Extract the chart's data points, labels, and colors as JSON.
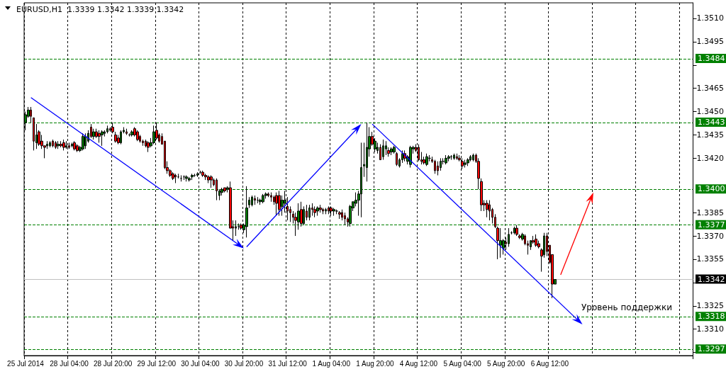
{
  "chart_data": {
    "type": "candlestick",
    "title": "EURUSD,H1  1.3339 1.3342 1.3339 1.3342",
    "categories": [
      "25 Jul 2014",
      null,
      null,
      null,
      null,
      null,
      null,
      null,
      null,
      null,
      null,
      null,
      null,
      null,
      null,
      null,
      "28 Jul 04:00",
      null,
      null,
      null,
      null,
      null,
      null,
      null,
      null,
      null,
      null,
      null,
      null,
      null,
      null,
      null,
      "28 Jul 20:00",
      null,
      null,
      null,
      null,
      null,
      null,
      null,
      null,
      null,
      null,
      null,
      null,
      null,
      null,
      null,
      "29 Jul 12:00",
      null,
      null,
      null,
      null,
      null,
      null,
      null,
      null,
      null,
      null,
      null,
      null,
      null,
      null,
      null,
      "30 Jul 04:00",
      null,
      null,
      null,
      null,
      null,
      null,
      null,
      null,
      null,
      null,
      null,
      null,
      null,
      null,
      null,
      "30 Jul 20:00",
      null,
      null,
      null,
      null,
      null,
      null,
      null,
      null,
      null,
      null,
      null,
      null,
      null,
      null,
      null,
      "31 Jul 12:00",
      null,
      null,
      null,
      null,
      null,
      null,
      null,
      null,
      null,
      null,
      null,
      null,
      null,
      null,
      null,
      "1 Aug 04:00",
      null,
      null,
      null,
      null,
      null,
      null,
      null,
      null,
      null,
      null,
      null,
      null,
      null,
      null,
      null,
      "1 Aug 20:00",
      null,
      null,
      null,
      null,
      null,
      null,
      null,
      null,
      null,
      null,
      null,
      null,
      null,
      null,
      null,
      "4 Aug 12:00",
      null,
      null,
      null,
      null,
      null,
      null,
      null,
      null,
      null,
      null,
      null,
      null,
      null,
      null,
      null,
      "5 Aug 04:00",
      null,
      null,
      null,
      null,
      null,
      null,
      null,
      null,
      null,
      null,
      null,
      null,
      null,
      null,
      null,
      "5 Aug 20:00",
      null,
      null,
      null,
      null,
      null,
      null,
      null,
      null,
      null,
      null,
      null,
      null,
      null,
      null,
      null,
      "6 Aug 12:00",
      null,
      null,
      null,
      null,
      null,
      null,
      null,
      null,
      null,
      null,
      null,
      null,
      null,
      null,
      null,
      null,
      null,
      null,
      null,
      null,
      null,
      null,
      null,
      null,
      null,
      null,
      null,
      null,
      null,
      null,
      null,
      null,
      null,
      null,
      null,
      null,
      null,
      null,
      null,
      null,
      null,
      null,
      null,
      null,
      null,
      null,
      null,
      null,
      null,
      null,
      null,
      null
    ],
    "ohlc": [
      [
        1.3443,
        1.345,
        1.3438,
        1.3448
      ],
      [
        1.3447,
        1.3453,
        1.3446,
        1.3451
      ],
      [
        1.3451,
        1.3453,
        1.3443,
        1.3447
      ],
      [
        1.3446,
        1.3446,
        1.3425,
        1.3431
      ],
      [
        1.343,
        1.3442,
        1.3426,
        1.3435
      ],
      [
        1.3437,
        1.3438,
        1.3428,
        1.3429
      ],
      [
        1.3431,
        1.3435,
        1.3426,
        1.3428
      ],
      [
        1.3428,
        1.3428,
        1.342,
        1.3427
      ],
      [
        1.3428,
        1.3431,
        1.3426,
        1.3429
      ],
      [
        1.3428,
        1.3431,
        1.3427,
        1.343
      ],
      [
        1.3431,
        1.3432,
        1.3427,
        1.3428
      ],
      [
        1.343,
        1.3431,
        1.3426,
        1.3427
      ],
      [
        1.3428,
        1.3431,
        1.3426,
        1.3429
      ],
      [
        1.3429,
        1.3431,
        1.3427,
        1.3428
      ],
      [
        1.343,
        1.3432,
        1.3425,
        1.3427
      ],
      [
        1.3427,
        1.3431,
        1.3426,
        1.3428
      ],
      [
        1.3428,
        1.343,
        1.3426,
        1.3427
      ],
      [
        1.3428,
        1.343,
        1.3427,
        1.3429
      ],
      [
        1.343,
        1.3431,
        1.3425,
        1.3426
      ],
      [
        1.3428,
        1.3429,
        1.3424,
        1.3425
      ],
      [
        1.3425,
        1.3428,
        1.3424,
        1.3427
      ],
      [
        1.3426,
        1.3436,
        1.3425,
        1.3434
      ],
      [
        1.3428,
        1.3436,
        1.3426,
        1.3434
      ],
      [
        1.3431,
        1.3438,
        1.343,
        1.3436
      ],
      [
        1.344,
        1.3442,
        1.3433,
        1.3434
      ],
      [
        1.3434,
        1.3439,
        1.3432,
        1.3437
      ],
      [
        1.3437,
        1.3439,
        1.3433,
        1.3434
      ],
      [
        1.3436,
        1.3438,
        1.343,
        1.3434
      ],
      [
        1.3435,
        1.3438,
        1.3428,
        1.3437
      ],
      [
        1.3436,
        1.3438,
        1.3434,
        1.3437
      ],
      [
        1.3437,
        1.3441,
        1.3436,
        1.3439
      ],
      [
        1.3439,
        1.344,
        1.3437,
        1.3438
      ],
      [
        1.344,
        1.3443,
        1.3436,
        1.3437
      ],
      [
        1.3435,
        1.3437,
        1.343,
        1.3431
      ],
      [
        1.3433,
        1.3435,
        1.3429,
        1.343
      ],
      [
        1.343,
        1.3438,
        1.3429,
        1.3437
      ],
      [
        1.3437,
        1.344,
        1.3436,
        1.3438
      ],
      [
        1.3437,
        1.3439,
        1.3435,
        1.3436
      ],
      [
        1.3435,
        1.3436,
        1.3434,
        1.3435
      ],
      [
        1.3435,
        1.3438,
        1.3434,
        1.3437
      ],
      [
        1.3439,
        1.344,
        1.3434,
        1.3435
      ],
      [
        1.3437,
        1.3438,
        1.3431,
        1.3432
      ],
      [
        1.3434,
        1.3435,
        1.343,
        1.3431
      ],
      [
        1.3431,
        1.3432,
        1.3428,
        1.343
      ],
      [
        1.3431,
        1.3432,
        1.3427,
        1.3428
      ],
      [
        1.343,
        1.3431,
        1.3424,
        1.3427
      ],
      [
        1.3428,
        1.3433,
        1.3427,
        1.343
      ],
      [
        1.343,
        1.3441,
        1.3429,
        1.3437
      ],
      [
        1.3438,
        1.3443,
        1.3432,
        1.3433
      ],
      [
        1.3435,
        1.3436,
        1.343,
        1.3431
      ],
      [
        1.3434,
        1.3436,
        1.3429,
        1.3429
      ],
      [
        1.3431,
        1.3431,
        1.3413,
        1.3414
      ],
      [
        1.3414,
        1.3418,
        1.341,
        1.3412
      ],
      [
        1.3412,
        1.3413,
        1.3408,
        1.3409
      ],
      [
        1.341,
        1.3411,
        1.3406,
        1.3407
      ],
      [
        1.3409,
        1.341,
        1.3404,
        1.3408
      ],
      [
        1.3408,
        1.341,
        1.3407,
        1.3408
      ],
      [
        1.3407,
        1.3409,
        1.3405,
        1.3407
      ],
      [
        1.3408,
        1.3409,
        1.3406,
        1.3408
      ],
      [
        1.3407,
        1.3409,
        1.3405,
        1.3408
      ],
      [
        1.3406,
        1.3408,
        1.3405,
        1.3407
      ],
      [
        1.3408,
        1.341,
        1.3406,
        1.3409
      ],
      [
        1.3409,
        1.341,
        1.3408,
        1.3409
      ],
      [
        1.3409,
        1.3411,
        1.3408,
        1.341
      ],
      [
        1.3411,
        1.3412,
        1.341,
        1.3411
      ],
      [
        1.3411,
        1.3412,
        1.3408,
        1.3409
      ],
      [
        1.3409,
        1.341,
        1.3406,
        1.3408
      ],
      [
        1.3408,
        1.3409,
        1.3404,
        1.3406
      ],
      [
        1.3408,
        1.3409,
        1.3401,
        1.3406
      ],
      [
        1.3406,
        1.3407,
        1.3402,
        1.3403
      ],
      [
        1.3406,
        1.3407,
        1.3393,
        1.3399
      ],
      [
        1.3396,
        1.34,
        1.3393,
        1.3399
      ],
      [
        1.3398,
        1.3401,
        1.3396,
        1.34
      ],
      [
        1.3401,
        1.3401,
        1.3398,
        1.3399
      ],
      [
        1.34,
        1.3402,
        1.3398,
        1.3401
      ],
      [
        1.3401,
        1.3405,
        1.3375,
        1.3375
      ],
      [
        1.3376,
        1.338,
        1.3367,
        1.3375
      ],
      [
        1.3375,
        1.338,
        1.337,
        1.3376
      ],
      [
        1.3376,
        1.3378,
        1.3374,
        1.3376
      ],
      [
        1.3377,
        1.3378,
        1.3374,
        1.3375
      ],
      [
        1.3374,
        1.3378,
        1.3372,
        1.3377
      ],
      [
        1.3376,
        1.3402,
        1.3369,
        1.3388
      ],
      [
        1.339,
        1.3395,
        1.3388,
        1.3393
      ],
      [
        1.339,
        1.3396,
        1.3389,
        1.3395
      ],
      [
        1.3394,
        1.3396,
        1.339,
        1.3393
      ],
      [
        1.3393,
        1.3395,
        1.3391,
        1.3393
      ],
      [
        1.3392,
        1.3394,
        1.339,
        1.3393
      ],
      [
        1.3392,
        1.3397,
        1.3391,
        1.3396
      ],
      [
        1.3396,
        1.3398,
        1.3394,
        1.3397
      ],
      [
        1.3397,
        1.3398,
        1.3395,
        1.3396
      ],
      [
        1.3396,
        1.3398,
        1.3392,
        1.3395
      ],
      [
        1.3395,
        1.3396,
        1.339,
        1.3392
      ],
      [
        1.3396,
        1.3398,
        1.3383,
        1.3391
      ],
      [
        1.3396,
        1.3399,
        1.3383,
        1.3387
      ],
      [
        1.3389,
        1.3396,
        1.3383,
        1.3393
      ],
      [
        1.3391,
        1.3399,
        1.3385,
        1.3393
      ],
      [
        1.3389,
        1.3395,
        1.338,
        1.3386
      ],
      [
        1.3387,
        1.3389,
        1.3379,
        1.3385
      ],
      [
        1.3384,
        1.3386,
        1.3378,
        1.3382
      ],
      [
        1.3382,
        1.3385,
        1.337,
        1.338
      ],
      [
        1.3379,
        1.3391,
        1.3374,
        1.3386
      ],
      [
        1.3387,
        1.3392,
        1.3376,
        1.3378
      ],
      [
        1.3378,
        1.3389,
        1.3377,
        1.3387
      ],
      [
        1.3386,
        1.339,
        1.338,
        1.3382
      ],
      [
        1.3382,
        1.339,
        1.338,
        1.3388
      ],
      [
        1.3388,
        1.3391,
        1.3383,
        1.3387
      ],
      [
        1.3387,
        1.3389,
        1.3382,
        1.3385
      ],
      [
        1.3386,
        1.3389,
        1.3383,
        1.3388
      ],
      [
        1.3388,
        1.339,
        1.3385,
        1.3387
      ],
      [
        1.3387,
        1.3388,
        1.3384,
        1.3386
      ],
      [
        1.3386,
        1.3388,
        1.3384,
        1.3387
      ],
      [
        1.3388,
        1.3389,
        1.3384,
        1.3386
      ],
      [
        1.3388,
        1.3389,
        1.3383,
        1.3386
      ],
      [
        1.3386,
        1.3388,
        1.3383,
        1.3387
      ],
      [
        1.3386,
        1.3387,
        1.3384,
        1.3386
      ],
      [
        1.3385,
        1.3386,
        1.3381,
        1.3384
      ],
      [
        1.3385,
        1.3387,
        1.338,
        1.3382
      ],
      [
        1.3383,
        1.3385,
        1.3377,
        1.3381
      ],
      [
        1.3381,
        1.3382,
        1.3376,
        1.3379
      ],
      [
        1.3378,
        1.339,
        1.3376,
        1.3389
      ],
      [
        1.3388,
        1.3392,
        1.3386,
        1.3392
      ],
      [
        1.3391,
        1.3398,
        1.3389,
        1.3393
      ],
      [
        1.3393,
        1.3399,
        1.3383,
        1.3397
      ],
      [
        1.3397,
        1.343,
        1.3382,
        1.3414
      ],
      [
        1.3415,
        1.343,
        1.3408,
        1.3416
      ],
      [
        1.3414,
        1.3443,
        1.3405,
        1.3427
      ],
      [
        1.3426,
        1.344,
        1.3421,
        1.3434
      ],
      [
        1.3434,
        1.3437,
        1.3428,
        1.3429
      ],
      [
        1.3426,
        1.3433,
        1.3424,
        1.3431
      ],
      [
        1.3425,
        1.343,
        1.3423,
        1.3427
      ],
      [
        1.3427,
        1.3429,
        1.3419,
        1.3419
      ],
      [
        1.3421,
        1.3432,
        1.3419,
        1.3428
      ],
      [
        1.3426,
        1.3431,
        1.3422,
        1.3428
      ],
      [
        1.3425,
        1.3427,
        1.3421,
        1.3423
      ],
      [
        1.3424,
        1.3427,
        1.3422,
        1.3426
      ],
      [
        1.3424,
        1.3428,
        1.3423,
        1.3427
      ],
      [
        1.3423,
        1.3424,
        1.3415,
        1.3416
      ],
      [
        1.3415,
        1.342,
        1.3414,
        1.3419
      ],
      [
        1.3419,
        1.3425,
        1.3417,
        1.3423
      ],
      [
        1.3423,
        1.3425,
        1.3418,
        1.342
      ],
      [
        1.3418,
        1.3422,
        1.3416,
        1.3421
      ],
      [
        1.3416,
        1.3428,
        1.3414,
        1.3427
      ],
      [
        1.3426,
        1.3428,
        1.3423,
        1.3427
      ],
      [
        1.3427,
        1.3429,
        1.3424,
        1.3425
      ],
      [
        1.3427,
        1.3429,
        1.3418,
        1.3419
      ],
      [
        1.3419,
        1.3424,
        1.3416,
        1.3418
      ],
      [
        1.3419,
        1.3421,
        1.3416,
        1.3417
      ],
      [
        1.3416,
        1.3423,
        1.3415,
        1.3421
      ],
      [
        1.342,
        1.3422,
        1.3418,
        1.342
      ],
      [
        1.3419,
        1.3421,
        1.3417,
        1.3418
      ],
      [
        1.3418,
        1.3419,
        1.341,
        1.3412
      ],
      [
        1.3415,
        1.3418,
        1.3409,
        1.3412
      ],
      [
        1.3414,
        1.342,
        1.3412,
        1.3418
      ],
      [
        1.3418,
        1.342,
        1.3416,
        1.3418
      ],
      [
        1.3417,
        1.3422,
        1.3416,
        1.342
      ],
      [
        1.342,
        1.3422,
        1.3418,
        1.3421
      ],
      [
        1.3421,
        1.3422,
        1.3419,
        1.3421
      ],
      [
        1.342,
        1.3423,
        1.3419,
        1.3422
      ],
      [
        1.3421,
        1.3423,
        1.3419,
        1.342
      ],
      [
        1.342,
        1.3422,
        1.3418,
        1.3419
      ],
      [
        1.3418,
        1.342,
        1.3413,
        1.3415
      ],
      [
        1.3416,
        1.3419,
        1.3414,
        1.3417
      ],
      [
        1.3417,
        1.342,
        1.3415,
        1.3419
      ],
      [
        1.3419,
        1.3422,
        1.3418,
        1.3421
      ],
      [
        1.3419,
        1.3423,
        1.3418,
        1.3422
      ],
      [
        1.3422,
        1.3423,
        1.3417,
        1.3418
      ],
      [
        1.3418,
        1.342,
        1.34,
        1.3407
      ],
      [
        1.3405,
        1.3407,
        1.3386,
        1.339
      ],
      [
        1.3391,
        1.3393,
        1.3386,
        1.339
      ],
      [
        1.3391,
        1.3393,
        1.3382,
        1.3387
      ],
      [
        1.339,
        1.3393,
        1.338,
        1.3386
      ],
      [
        1.3387,
        1.3388,
        1.3378,
        1.3382
      ],
      [
        1.3382,
        1.3384,
        1.3375,
        1.3376
      ],
      [
        1.3375,
        1.3376,
        1.3355,
        1.3367
      ],
      [
        1.3364,
        1.3375,
        1.3356,
        1.3367
      ],
      [
        1.3362,
        1.3368,
        1.3358,
        1.3367
      ],
      [
        1.3366,
        1.3369,
        1.3361,
        1.3365
      ],
      [
        1.3365,
        1.3375,
        1.3363,
        1.3371
      ],
      [
        1.3372,
        1.3373,
        1.3371,
        1.3372
      ],
      [
        1.3372,
        1.3376,
        1.3371,
        1.3375
      ],
      [
        1.3375,
        1.3377,
        1.337,
        1.3371
      ],
      [
        1.337,
        1.3371,
        1.3368,
        1.3369
      ],
      [
        1.3368,
        1.3372,
        1.3367,
        1.3371
      ],
      [
        1.337,
        1.3371,
        1.3364,
        1.3365
      ],
      [
        1.3365,
        1.3367,
        1.3358,
        1.3364
      ],
      [
        1.3363,
        1.3367,
        1.3361,
        1.3367
      ],
      [
        1.3367,
        1.337,
        1.3365,
        1.3366
      ],
      [
        1.3368,
        1.3371,
        1.3363,
        1.3364
      ],
      [
        1.3365,
        1.3367,
        1.3362,
        1.3363
      ],
      [
        1.3361,
        1.3362,
        1.3347,
        1.3357
      ],
      [
        1.3358,
        1.3372,
        1.3356,
        1.337
      ],
      [
        1.337,
        1.3372,
        1.3357,
        1.336
      ],
      [
        1.3364,
        1.3364,
        1.3352,
        1.3353
      ],
      [
        1.3358,
        1.3358,
        1.333,
        1.3339
      ],
      [
        1.3339,
        1.3342,
        1.3339,
        1.3342
      ],
      null,
      null,
      null,
      null,
      null,
      null,
      null,
      null,
      null,
      null,
      null,
      null,
      null,
      null,
      null,
      null,
      null,
      null,
      null,
      null,
      null,
      null,
      null,
      null,
      null,
      null,
      null,
      null,
      null,
      null,
      null,
      null,
      null,
      null,
      null,
      null,
      null,
      null,
      null,
      null,
      null,
      null,
      null,
      null,
      null,
      null,
      null,
      null,
      null,
      null
    ],
    "ylim": [
      1.3293,
      1.352
    ],
    "yticks": [
      {
        "value": 1.3295,
        "label": null
      },
      {
        "value": 1.331,
        "label": "1.3310"
      },
      {
        "value": 1.3325,
        "label": "1.3325"
      },
      {
        "value": 1.334,
        "label": null
      },
      {
        "value": 1.3355,
        "label": "1.3355"
      },
      {
        "value": 1.337,
        "label": "1.3370"
      },
      {
        "value": 1.3385,
        "label": "1.3385"
      },
      {
        "value": 1.342,
        "label": "1.3420"
      },
      {
        "value": 1.3435,
        "label": "1.3435"
      },
      {
        "value": 1.345,
        "label": "1.3450"
      },
      {
        "value": 1.3465,
        "label": "1.3465"
      },
      {
        "value": 1.348,
        "label": null
      },
      {
        "value": 1.3495,
        "label": "1.3495"
      },
      {
        "value": 1.351,
        "label": "1.3510"
      }
    ],
    "ref_lines": [
      {
        "axis": "y",
        "value": 1.3484,
        "label": "1.3484",
        "color": "#008000",
        "line_style": "dashed"
      },
      {
        "axis": "y",
        "value": 1.3443,
        "label": "1.3443",
        "color": "#008000",
        "line_style": "dashed"
      },
      {
        "axis": "y",
        "value": 1.34,
        "label": "1.3400",
        "color": "#008000",
        "line_style": "dashed"
      },
      {
        "axis": "y",
        "value": 1.3377,
        "label": "1.3377",
        "color": "#008000",
        "line_style": "dashed"
      },
      {
        "axis": "y",
        "value": 1.3342,
        "label": "1.3342",
        "color": "#c0c0c0",
        "line_style": "solid"
      },
      {
        "axis": "y",
        "value": 1.3318,
        "label": "1.3318",
        "color": "#008000",
        "line_style": "dashed"
      },
      {
        "axis": "y",
        "value": 1.3297,
        "label": "1.3297",
        "color": "#008000",
        "line_style": "dashed"
      }
    ],
    "annotations": [
      "Уровень поддержки"
    ],
    "grid": "x"
  }
}
